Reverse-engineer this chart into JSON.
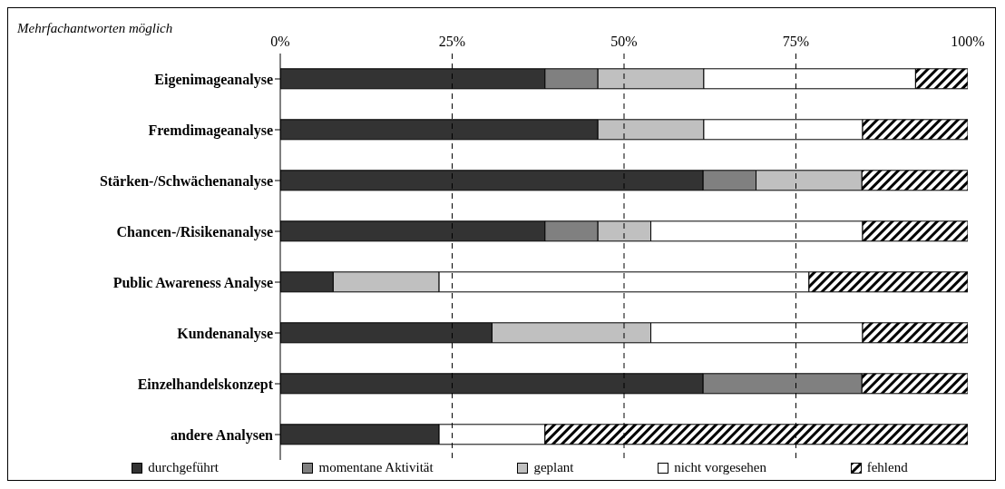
{
  "chart_data": {
    "type": "bar",
    "orientation": "horizontal",
    "stacked": true,
    "categories": [
      "Eigenimageanalyse",
      "Fremdimageanalyse",
      "Stärken-/Schwächenanalyse",
      "Chancen-/Risikenanalyse",
      "Public Awareness Analyse",
      "Kundenanalyse",
      "Einzelhandelskonzept",
      "andere Analysen"
    ],
    "series": [
      {
        "name": "durchgeführt",
        "color": "#333333",
        "values": [
          38.5,
          46.2,
          61.5,
          38.5,
          7.7,
          30.8,
          61.5,
          23.1
        ]
      },
      {
        "name": "momentane Aktivität",
        "color": "#808080",
        "values": [
          7.7,
          0,
          7.7,
          7.7,
          0,
          0,
          23.1,
          0
        ]
      },
      {
        "name": "geplant",
        "color": "#c0c0c0",
        "values": [
          15.4,
          15.4,
          15.4,
          7.7,
          15.4,
          23.1,
          0,
          0
        ]
      },
      {
        "name": "nicht vorgesehen",
        "color": "#ffffff",
        "values": [
          30.8,
          23.1,
          0,
          30.8,
          53.8,
          30.8,
          0,
          15.4
        ]
      },
      {
        "name": "fehlend",
        "color": "#000000",
        "values": [
          7.7,
          15.4,
          15.4,
          15.4,
          23.1,
          15.4,
          15.4,
          61.5
        ]
      }
    ],
    "xlim": [
      0,
      100
    ],
    "xticks": [
      {
        "value": 0,
        "label": "0%"
      },
      {
        "value": 25,
        "label": "25%"
      },
      {
        "value": 50,
        "label": "50%"
      },
      {
        "value": 75,
        "label": "75%"
      },
      {
        "value": 100,
        "label": "100%"
      }
    ],
    "grid": "x",
    "legend": "bottom",
    "annotations": [
      "Mehrfachantworten möglich"
    ]
  }
}
